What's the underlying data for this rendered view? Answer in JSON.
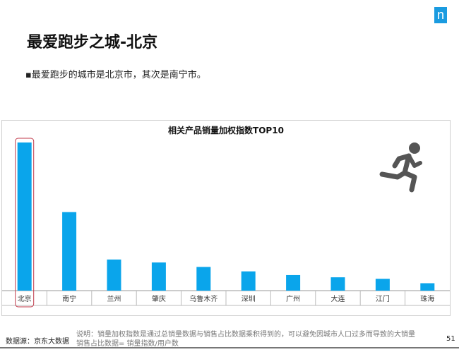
{
  "logo_text": "n",
  "title": "最爱跑步之城-北京",
  "bullet": "▪最爱跑步的城市是北京市，其次是南宁市。",
  "footer": {
    "source": "数据源：京东大数据",
    "note_line1": "说明：销量加权指数是通过总销量数据与销售占比数据乘积得到的，可以避免因城市人口过多而导致的大销量",
    "note_line2": "销售占比数据= 销量指数/用户数",
    "page_number": "51"
  },
  "colors": {
    "bar": "#0aa5eb",
    "highlight": "#c0394a",
    "icon": "#555555"
  },
  "chart_data": {
    "type": "bar",
    "title": "相关产品销量加权指数TOP10",
    "categories": [
      "北京",
      "南宁",
      "兰州",
      "肇庆",
      "乌鲁木齐",
      "深圳",
      "广州",
      "大连",
      "江门",
      "珠海"
    ],
    "values": [
      100,
      53,
      21,
      19,
      16,
      13,
      10.5,
      9,
      8,
      5
    ],
    "xlabel": "",
    "ylabel": "",
    "ylim": [
      0,
      100
    ],
    "grid": false,
    "highlighted_category": "北京"
  }
}
